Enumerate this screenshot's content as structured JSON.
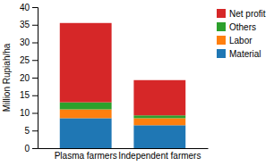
{
  "chart_data": {
    "type": "bar",
    "stacked": true,
    "categories": [
      "Plasma farmers",
      "Independent farmers"
    ],
    "series": [
      {
        "name": "Material",
        "values": [
          8.5,
          6.5
        ]
      },
      {
        "name": "Labor",
        "values": [
          2.5,
          2.0
        ]
      },
      {
        "name": "Others",
        "values": [
          2.0,
          0.8
        ]
      },
      {
        "name": "Net profit",
        "values": [
          22.5,
          10.0
        ]
      }
    ],
    "y_label": "Million Rupiah/ha",
    "ylim": [
      0,
      40
    ],
    "yticks": [
      0,
      5,
      10,
      15,
      20,
      25,
      30,
      35,
      40
    ],
    "grid": false,
    "legend": "upper right"
  }
}
